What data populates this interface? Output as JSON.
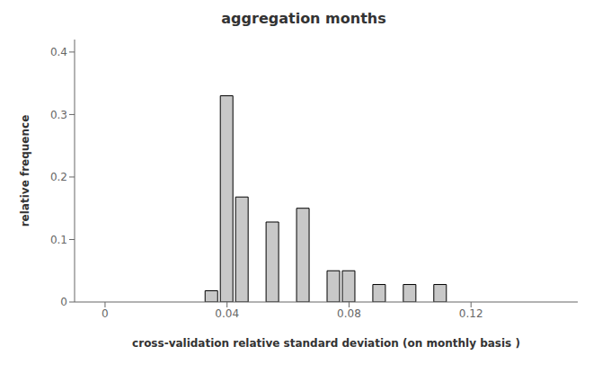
{
  "chart_data": {
    "type": "bar",
    "title": "aggregation months",
    "xlabel": "cross-validation relative standard deviation (on monthly basis )",
    "ylabel": "relative frequence",
    "x": [
      0.035,
      0.04,
      0.045,
      0.05,
      0.055,
      0.06,
      0.065,
      0.07,
      0.075,
      0.08,
      0.085,
      0.09,
      0.095,
      0.1,
      0.105,
      0.11,
      0.115,
      0.12,
      0.125,
      0.13
    ],
    "values": [
      0.018,
      0.33,
      0.168,
      0.0,
      0.128,
      0.0,
      0.15,
      0.0,
      0.05,
      0.05,
      0.0,
      0.028,
      0.0,
      0.028,
      0.0,
      0.028,
      0.0,
      0.0,
      0.0,
      0.0
    ],
    "color": "#c8c8c8",
    "xlim": [
      -0.01,
      0.155
    ],
    "ylim": [
      0.0,
      0.42
    ],
    "xticks": [
      0,
      0.04,
      0.08,
      0.12
    ],
    "yticks": [
      0.0,
      0.1,
      0.2,
      0.3,
      0.4
    ],
    "grid": false
  }
}
